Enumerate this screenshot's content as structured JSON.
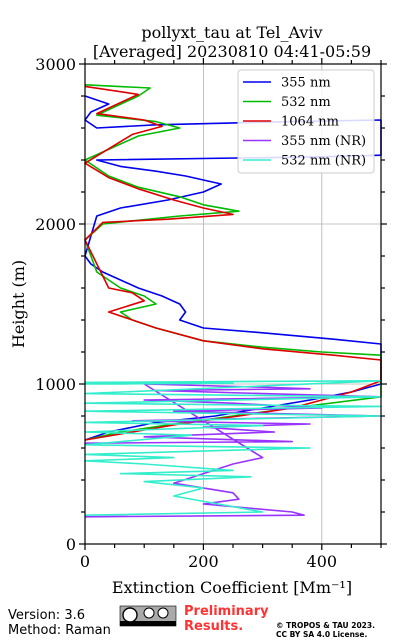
{
  "chart_data": {
    "type": "line",
    "title": "pollyxt_tau at Tel_Aviv",
    "subtitle": "[Averaged] 20230810 04:41-05:59",
    "xlabel": "Extinction Coefficient [Mm⁻¹]",
    "ylabel": "Height (m)",
    "xlim": [
      0,
      500
    ],
    "ylim": [
      0,
      3000
    ],
    "xticks": [
      0,
      200,
      400
    ],
    "yticks": [
      0,
      1000,
      2000,
      3000
    ],
    "grid": true,
    "legend_position": "top-right",
    "series": [
      {
        "name": "355 nm",
        "color": "#0000ee",
        "x": [
          0,
          40,
          120,
          220,
          300,
          380,
          450,
          500,
          500,
          420,
          300,
          200,
          160,
          170,
          160,
          130,
          90,
          60,
          30,
          10,
          0,
          20,
          60,
          140,
          200,
          230,
          170,
          120,
          60,
          20,
          400,
          500,
          500,
          350,
          120,
          20,
          0,
          10,
          40,
          0
        ],
        "y": [
          650,
          700,
          760,
          800,
          850,
          900,
          950,
          1000,
          1250,
          1280,
          1320,
          1350,
          1400,
          1450,
          1500,
          1550,
          1600,
          1650,
          1700,
          1750,
          1800,
          2050,
          2100,
          2150,
          2200,
          2250,
          2300,
          2330,
          2360,
          2400,
          2420,
          2430,
          2650,
          2640,
          2620,
          2600,
          2650,
          2700,
          2750,
          2800
        ]
      },
      {
        "name": "532 nm",
        "color": "#00bb00",
        "x": [
          0,
          60,
          150,
          250,
          350,
          500,
          500,
          400,
          300,
          200,
          120,
          80,
          60,
          120,
          100,
          60,
          20,
          0,
          30,
          160,
          260,
          200,
          160,
          90,
          40,
          0,
          90,
          160,
          120,
          20,
          90,
          110,
          0
        ],
        "y": [
          650,
          700,
          750,
          800,
          850,
          920,
          1180,
          1200,
          1230,
          1270,
          1350,
          1400,
          1450,
          1500,
          1550,
          1600,
          1700,
          1900,
          2000,
          2050,
          2080,
          2120,
          2170,
          2230,
          2300,
          2400,
          2550,
          2600,
          2640,
          2680,
          2800,
          2850,
          2870
        ]
      },
      {
        "name": "1064 nm",
        "color": "#dd0000",
        "x": [
          0,
          80,
          160,
          260,
          350,
          450,
          500,
          500,
          420,
          300,
          200,
          120,
          80,
          40,
          100,
          80,
          40,
          0,
          30,
          140,
          250,
          200,
          150,
          90,
          40,
          0,
          80,
          130,
          100,
          20,
          90,
          0
        ],
        "y": [
          650,
          700,
          750,
          800,
          850,
          950,
          1020,
          1150,
          1180,
          1220,
          1270,
          1350,
          1400,
          1450,
          1520,
          1570,
          1600,
          1900,
          2010,
          2030,
          2060,
          2100,
          2150,
          2220,
          2290,
          2380,
          2560,
          2610,
          2650,
          2690,
          2810,
          2860
        ]
      },
      {
        "name": "355 nm (NR)",
        "color": "#9933ff",
        "x": [
          0,
          350,
          100,
          320,
          200,
          380,
          80,
          500,
          150,
          400,
          250,
          100,
          500,
          300,
          120,
          380,
          300,
          100,
          300,
          250,
          200,
          150,
          250,
          260,
          200,
          350,
          370,
          0
        ],
        "y": [
          630,
          640,
          670,
          700,
          730,
          750,
          770,
          800,
          830,
          850,
          880,
          900,
          920,
          940,
          960,
          970,
          980,
          1000,
          540,
          500,
          440,
          380,
          320,
          280,
          250,
          200,
          180,
          170
        ]
      },
      {
        "name": "532 nm (NR)",
        "color": "#33eecc",
        "x": [
          0,
          250,
          0,
          500,
          0,
          500,
          0,
          500,
          0,
          500,
          0,
          300,
          0,
          180,
          0,
          380,
          0,
          150,
          0,
          100,
          250,
          60,
          280,
          100,
          200,
          150,
          300,
          0
        ],
        "y": [
          1000,
          1005,
          1010,
          1020,
          940,
          920,
          880,
          860,
          830,
          800,
          760,
          740,
          700,
          680,
          620,
          600,
          560,
          540,
          520,
          500,
          460,
          440,
          420,
          390,
          350,
          300,
          200,
          180
        ]
      }
    ]
  },
  "footer": {
    "version": "Version: 3.6",
    "method": "Method: Raman",
    "preliminary": "Preliminary Results.",
    "copyright_line1": "© TROPOS & TAU 2023.",
    "copyright_line2": "CC BY SA 4.0 License."
  }
}
